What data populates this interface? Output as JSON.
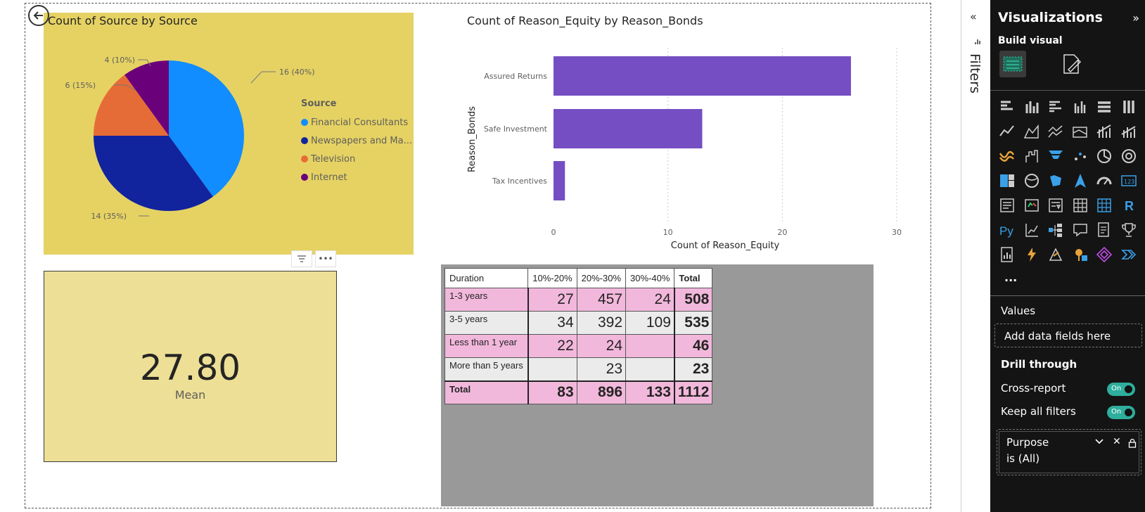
{
  "pie": {
    "title": "Count of Source by Source",
    "legend_title": "Source",
    "slice_labels": [
      "16 (40%)",
      "14 (35%)",
      "6 (15%)",
      "4 (10%)"
    ]
  },
  "bar": {
    "title": "Count of Reason_Equity by Reason_Bonds"
  },
  "card": {
    "value": "27.80",
    "label": "Mean"
  },
  "matrix": {
    "headers": [
      "Duration",
      "10%-20%",
      "20%-30%",
      "30%-40%",
      "Total"
    ],
    "rows": [
      {
        "label": "1-3 years",
        "cells": [
          "27",
          "457",
          "24",
          "508"
        ]
      },
      {
        "label": "3-5 years",
        "cells": [
          "34",
          "392",
          "109",
          "535"
        ]
      },
      {
        "label": "Less than 1 year",
        "cells": [
          "22",
          "24",
          "",
          "46"
        ]
      },
      {
        "label": "More than 5 years",
        "cells": [
          "",
          "23",
          "",
          "23"
        ]
      }
    ],
    "total_row": {
      "label": "Total",
      "cells": [
        "83",
        "896",
        "133",
        "1112"
      ]
    }
  },
  "chart_data": [
    {
      "type": "pie",
      "title": "Count of Source by Source",
      "legend_title": "Source",
      "legend_position": "right",
      "categories": [
        "Financial Consultants",
        "Newspapers and Ma...",
        "Television",
        "Internet"
      ],
      "values": [
        16,
        14,
        6,
        4
      ],
      "percent_labels": [
        "40%",
        "35%",
        "15%",
        "10%"
      ],
      "colors": [
        "#118DFF",
        "#12239E",
        "#E66C37",
        "#6B007B"
      ]
    },
    {
      "type": "bar",
      "orientation": "horizontal",
      "title": "Count of Reason_Equity by Reason_Bonds",
      "categories": [
        "Assured Returns",
        "Safe Investment",
        "Tax Incentives"
      ],
      "values": [
        26,
        13,
        1
      ],
      "xlabel": "Count of Reason_Equity",
      "ylabel": "Reason_Bonds",
      "xlim": [
        0,
        30
      ],
      "xticks": [
        0,
        10,
        20,
        30
      ],
      "grid": true,
      "color": "#744EC2"
    }
  ],
  "filters": {
    "label": "Filters",
    "collapse_icon": "double-chevron-left-icon"
  },
  "viz_pane": {
    "title": "Visualizations",
    "build_visual": "Build visual",
    "values_label": "Values",
    "values_placeholder": "Add data fields here",
    "drill_through": "Drill through",
    "cross_report": "Cross-report",
    "keep_all_filters": "Keep all filters",
    "toggle_on": "On",
    "filter_field": "Purpose",
    "filter_value": "is (All)",
    "more": "...",
    "visual_icons": [
      "stacked-bar-icon",
      "stacked-column-icon",
      "clustered-bar-icon",
      "clustered-column-icon",
      "100-bar-icon",
      "100-column-icon",
      "line-chart-icon",
      "area-chart-icon",
      "stacked-area-icon",
      "ribbon-chart-icon",
      "line-column-icon",
      "line-clustered-column-icon",
      "ribbon-icon",
      "waterfall-icon",
      "funnel-icon",
      "scatter-icon",
      "pie-icon",
      "donut-icon",
      "treemap-icon",
      "map-icon",
      "filled-map-icon",
      "azure-map-icon",
      "gauge-icon",
      "card-icon",
      "multi-row-card-icon",
      "kpi-icon",
      "slicer-icon",
      "table-icon",
      "matrix-icon",
      "r-visual-icon",
      "python-visual-icon",
      "key-influencers-icon",
      "decomposition-tree-icon",
      "qa-icon",
      "smart-narrative-icon",
      "metrics-icon",
      "paginated-report-icon",
      "power-automate-icon",
      "power-apps-icon",
      "arcgis-icon",
      "power-apps-diamond-icon",
      "more-visuals-icon"
    ],
    "colors": {
      "background": "#141414",
      "toggle": "#2EAE9C",
      "icon_accent": "#3AA0E8"
    }
  }
}
